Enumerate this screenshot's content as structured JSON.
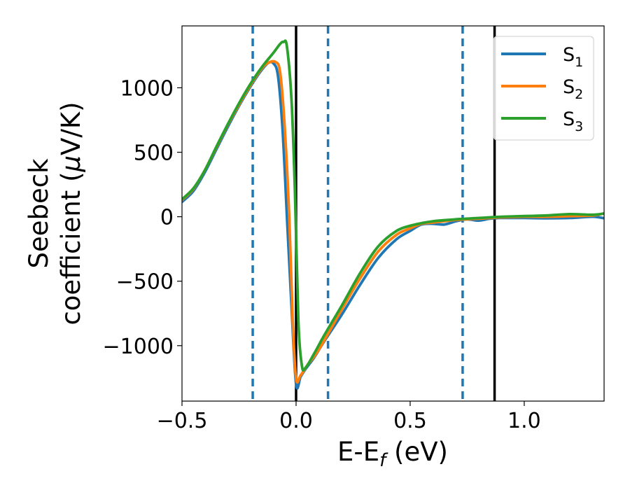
{
  "chart_data": {
    "type": "line",
    "xlabel": {
      "main": "E-E",
      "sub": "f",
      "unit": " (eV)"
    },
    "ylabel": {
      "line1": "Seebeck",
      "line2_pre": "coefficient  (",
      "line2_mu": "μ",
      "line2_post": "V/K)"
    },
    "xlim": [
      -0.5,
      1.35
    ],
    "ylim": [
      -1430,
      1480
    ],
    "x_ticks": [
      {
        "value": -0.5,
        "label": "−0.5"
      },
      {
        "value": 0.0,
        "label": "0.0"
      },
      {
        "value": 0.5,
        "label": "0.5"
      },
      {
        "value": 1.0,
        "label": "1.0"
      }
    ],
    "y_ticks": [
      {
        "value": 1000,
        "label": "1000"
      },
      {
        "value": 500,
        "label": "500"
      },
      {
        "value": 0,
        "label": "0"
      },
      {
        "value": -500,
        "label": "−500"
      },
      {
        "value": -1000,
        "label": "−1000"
      }
    ],
    "vlines_solid": [
      0.0,
      0.87
    ],
    "vlines_dashed": [
      -0.19,
      0.14,
      0.73
    ],
    "vline_colors": {
      "solid": "#000000",
      "dashed": "#1f77b4"
    },
    "legend_placement": "top-right",
    "series": [
      {
        "name": "S",
        "sub": "1",
        "color": "#1f77b4",
        "points": [
          [
            -0.5,
            115
          ],
          [
            -0.45,
            200
          ],
          [
            -0.4,
            345
          ],
          [
            -0.35,
            520
          ],
          [
            -0.3,
            695
          ],
          [
            -0.25,
            860
          ],
          [
            -0.2,
            1010
          ],
          [
            -0.15,
            1140
          ],
          [
            -0.12,
            1195
          ],
          [
            -0.1,
            1190
          ],
          [
            -0.08,
            1100
          ],
          [
            -0.06,
            700
          ],
          [
            -0.04,
            0
          ],
          [
            -0.02,
            -700
          ],
          [
            0.0,
            -1300
          ],
          [
            0.02,
            -1240
          ],
          [
            0.04,
            -1185
          ],
          [
            0.08,
            -1090
          ],
          [
            0.12,
            -975
          ],
          [
            0.2,
            -760
          ],
          [
            0.28,
            -530
          ],
          [
            0.36,
            -320
          ],
          [
            0.44,
            -175
          ],
          [
            0.5,
            -110
          ],
          [
            0.55,
            -60
          ],
          [
            0.6,
            -55
          ],
          [
            0.65,
            -60
          ],
          [
            0.7,
            -35
          ],
          [
            0.75,
            -20
          ],
          [
            0.8,
            -30
          ],
          [
            0.85,
            -15
          ],
          [
            0.9,
            -10
          ],
          [
            1.0,
            -10
          ],
          [
            1.1,
            -12
          ],
          [
            1.2,
            -10
          ],
          [
            1.3,
            0
          ],
          [
            1.35,
            -12
          ]
        ]
      },
      {
        "name": "S",
        "sub": "2",
        "color": "#ff7f0e",
        "points": [
          [
            -0.5,
            130
          ],
          [
            -0.45,
            215
          ],
          [
            -0.4,
            360
          ],
          [
            -0.35,
            535
          ],
          [
            -0.3,
            710
          ],
          [
            -0.25,
            870
          ],
          [
            -0.2,
            1020
          ],
          [
            -0.15,
            1150
          ],
          [
            -0.12,
            1195
          ],
          [
            -0.09,
            1200
          ],
          [
            -0.07,
            1120
          ],
          [
            -0.05,
            700
          ],
          [
            -0.03,
            0
          ],
          [
            -0.015,
            -800
          ],
          [
            0.0,
            -1255
          ],
          [
            0.02,
            -1230
          ],
          [
            0.05,
            -1150
          ],
          [
            0.1,
            -1030
          ],
          [
            0.2,
            -720
          ],
          [
            0.28,
            -480
          ],
          [
            0.36,
            -270
          ],
          [
            0.44,
            -140
          ],
          [
            0.5,
            -90
          ],
          [
            0.55,
            -55
          ],
          [
            0.6,
            -45
          ],
          [
            0.7,
            -25
          ],
          [
            0.8,
            -15
          ],
          [
            0.9,
            -5
          ],
          [
            1.0,
            0
          ],
          [
            1.1,
            0
          ],
          [
            1.2,
            5
          ],
          [
            1.3,
            10
          ],
          [
            1.35,
            25
          ]
        ]
      },
      {
        "name": "S",
        "sub": "3",
        "color": "#2ca02c",
        "points": [
          [
            -0.5,
            135
          ],
          [
            -0.45,
            220
          ],
          [
            -0.4,
            360
          ],
          [
            -0.35,
            540
          ],
          [
            -0.3,
            715
          ],
          [
            -0.25,
            880
          ],
          [
            -0.2,
            1030
          ],
          [
            -0.15,
            1160
          ],
          [
            -0.1,
            1270
          ],
          [
            -0.07,
            1340
          ],
          [
            -0.055,
            1355
          ],
          [
            -0.04,
            1320
          ],
          [
            -0.02,
            900
          ],
          [
            -0.005,
            200
          ],
          [
            0.01,
            -800
          ],
          [
            0.025,
            -1150
          ],
          [
            0.04,
            -1175
          ],
          [
            0.08,
            -1060
          ],
          [
            0.12,
            -930
          ],
          [
            0.2,
            -690
          ],
          [
            0.28,
            -440
          ],
          [
            0.36,
            -230
          ],
          [
            0.44,
            -110
          ],
          [
            0.5,
            -70
          ],
          [
            0.55,
            -50
          ],
          [
            0.6,
            -35
          ],
          [
            0.7,
            -20
          ],
          [
            0.8,
            -10
          ],
          [
            0.85,
            -5
          ],
          [
            0.9,
            0
          ],
          [
            1.0,
            5
          ],
          [
            1.1,
            10
          ],
          [
            1.2,
            20
          ],
          [
            1.3,
            15
          ],
          [
            1.35,
            25
          ]
        ]
      }
    ]
  }
}
